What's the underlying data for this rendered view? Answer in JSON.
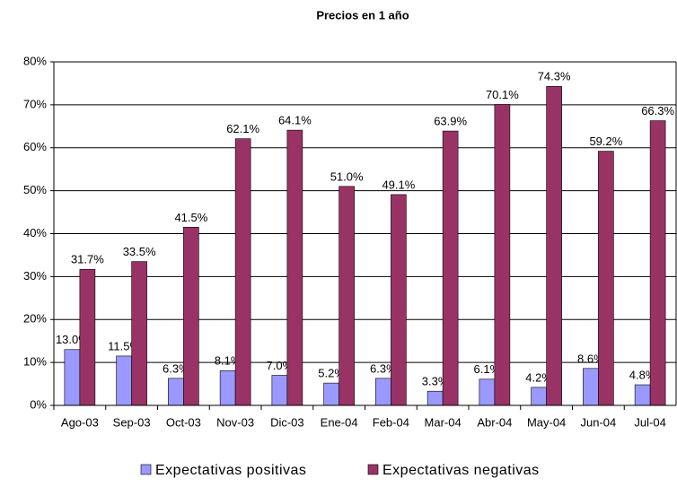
{
  "chart_data": {
    "type": "bar",
    "title": "Precios en 1  año",
    "categories": [
      "Ago-03",
      "Sep-03",
      "Oct-03",
      "Nov-03",
      "Dic-03",
      "Ene-04",
      "Feb-04",
      "Mar-04",
      "Abr-04",
      "May-04",
      "Jun-04",
      "Jul-04"
    ],
    "series": [
      {
        "name": "Expectativas positivas",
        "color": "#9999ff",
        "values": [
          13.0,
          11.5,
          6.3,
          8.1,
          7.0,
          5.2,
          6.3,
          3.3,
          6.1,
          4.2,
          8.6,
          4.8
        ],
        "value_labels": [
          "13.0%",
          "11.5%",
          "6.3%",
          "8.1%",
          "7.0%",
          "5.2%",
          "6.3%",
          "3.3%",
          "6.1%",
          "4.2%",
          "8.6%",
          "4.8%"
        ]
      },
      {
        "name": "Expectativas negativas",
        "color": "#993366",
        "values": [
          31.7,
          33.5,
          41.5,
          62.1,
          64.1,
          51.0,
          49.1,
          63.9,
          70.1,
          74.3,
          59.2,
          66.3
        ],
        "value_labels": [
          "31.7%",
          "33.5%",
          "41.5%",
          "62.1%",
          "64.1%",
          "51.0%",
          "49.1%",
          "63.9%",
          "70.1%",
          "74.3%",
          "59.2%",
          "66.3%"
        ]
      }
    ],
    "ylim": [
      0,
      80
    ],
    "yticks": [
      {
        "value": 0,
        "label": "0%"
      },
      {
        "value": 10,
        "label": "10%"
      },
      {
        "value": 20,
        "label": "20%"
      },
      {
        "value": 30,
        "label": "30%"
      },
      {
        "value": 40,
        "label": "40%"
      },
      {
        "value": 50,
        "label": "50%"
      },
      {
        "value": 60,
        "label": "60%"
      },
      {
        "value": 70,
        "label": "70%"
      },
      {
        "value": 80,
        "label": "80%"
      }
    ],
    "grid": true,
    "legend": "bottom"
  }
}
